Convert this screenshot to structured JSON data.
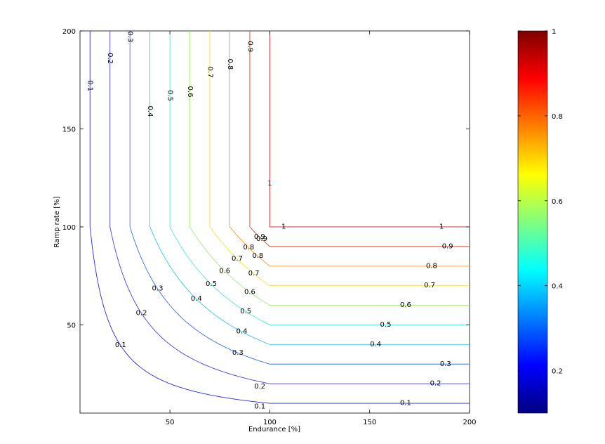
{
  "chart_data": {
    "type": "contour",
    "title": "",
    "xlabel": "Endurance [%]",
    "ylabel": "Ramp rate [%]",
    "xlim": [
      5,
      200
    ],
    "ylim": [
      5,
      200
    ],
    "x_ticks": [
      50,
      100,
      150,
      200
    ],
    "y_ticks": [
      50,
      100,
      150,
      200
    ],
    "x_tick_labels": [
      "50",
      "100",
      "150",
      "200"
    ],
    "y_tick_labels": [
      "50",
      "100",
      "150",
      "200"
    ],
    "grid": false,
    "levels": [
      0.1,
      0.2,
      0.3,
      0.4,
      0.5,
      0.6,
      0.7,
      0.8,
      0.9,
      1.0
    ],
    "level_labels": [
      "0.1",
      "0.2",
      "0.3",
      "0.4",
      "0.5",
      "0.6",
      "0.7",
      "0.8",
      "0.9",
      "1"
    ],
    "level_colors": [
      "#2c2cc8",
      "#4444dd",
      "#3a6fe8",
      "#33c8e8",
      "#55e8d8",
      "#a8e888",
      "#f0e040",
      "#f09a30",
      "#d84828",
      "#c02020"
    ],
    "colormap": "jet",
    "colorbar": {
      "range": [
        0.1,
        1.0
      ],
      "ticks": [
        0.2,
        0.4,
        0.6,
        0.8,
        1.0
      ],
      "tick_labels": [
        "0.2",
        "0.4",
        "0.6",
        "0.8",
        "1"
      ]
    }
  }
}
